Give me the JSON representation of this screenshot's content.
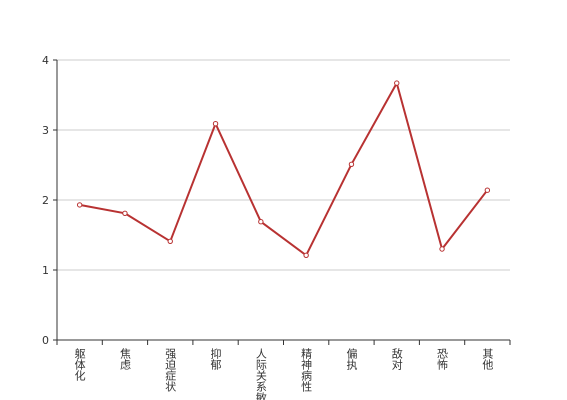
{
  "chart_data": {
    "type": "line",
    "categories": [
      "躯体化",
      "焦虑",
      "强迫症状",
      "抑郁",
      "人际关系敏感",
      "精神病性",
      "偏执",
      "敌对",
      "恐怖",
      "其他"
    ],
    "series": [
      {
        "color": "#b83232",
        "values": [
          1.93,
          1.81,
          1.41,
          3.09,
          1.69,
          1.21,
          2.51,
          3.67,
          1.3,
          2.14
        ]
      }
    ],
    "ylim": [
      0,
      4
    ],
    "yticks": [
      0,
      1,
      2,
      3,
      4
    ],
    "grid": true
  }
}
